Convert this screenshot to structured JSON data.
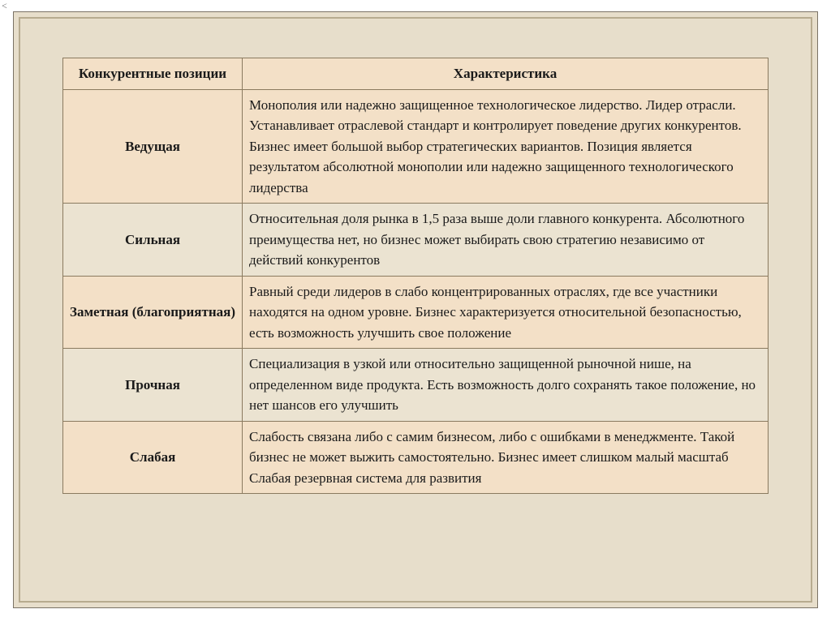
{
  "stray_mark": "<",
  "colors": {
    "page_bg": "#ffffff",
    "slide_bg": "#e7decb",
    "outer_border": "#7a7265",
    "inner_border": "#b7ab8f",
    "table_border": "#8a7a5f",
    "row_odd_bg": "#f3e0c7",
    "row_even_bg": "#ebe3d1",
    "header_bg": "#f3e0c7",
    "text_color": "#1a1a1a"
  },
  "typography": {
    "font_family": "Georgia serif",
    "font_size_pt": 13,
    "line_height": 1.5
  },
  "table": {
    "columns": [
      "Конкурентные позиции",
      "Характеристика"
    ],
    "rows": [
      {
        "position": "Ведущая",
        "description": "Монополия или надежно защищенное технологическое лидерство. Лидер отрасли. Устанавливает отраслевой стандарт и контролирует поведение других конкурентов. Бизнес имеет большой выбор стратегических вариантов. Позиция является результатом абсолютной монополии или надежно защищенного технологического лидерства"
      },
      {
        "position": "Сильная",
        "description": "Относительная доля рынка в 1,5 раза выше доли главного конкурента. Абсолютного преимущества нет, но бизнес может выбирать свою стратегию независимо от действий конкурентов"
      },
      {
        "position": "Заметная (благоприятная)",
        "description": "Равный среди лидеров в слабо концентрированных отраслях, где все участники находятся на одном уровне. Бизнес характеризуется относительной безопасностью, есть возможность улучшить свое положение"
      },
      {
        "position": "Прочная",
        "description": "Специализация в узкой или относительно защищенной рыночной нише, на определенном виде продукта. Есть возможность долго сохранять такое положение, но нет шансов его улучшить"
      },
      {
        "position": "Слабая",
        "description": "Слабость связана либо с самим бизнесом, либо с ошибками в менеджменте. Такой бизнес не может выжить самостоятельно. Бизнес имеет слишком малый масштаб Слабая резервная система для развития"
      }
    ]
  }
}
